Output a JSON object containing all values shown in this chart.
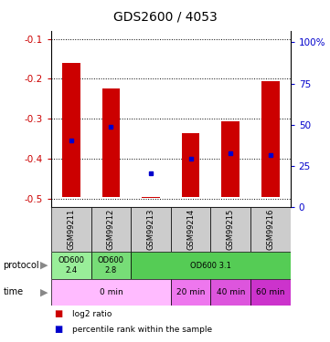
{
  "title": "GDS2600 / 4053",
  "samples": [
    "GSM99211",
    "GSM99212",
    "GSM99213",
    "GSM99214",
    "GSM99215",
    "GSM99216"
  ],
  "log2_top": [
    -0.16,
    -0.225,
    -0.496,
    -0.335,
    -0.305,
    -0.205
  ],
  "log2_bottom": [
    -0.496,
    -0.496,
    -0.498,
    -0.496,
    -0.496,
    -0.496
  ],
  "percentile_rank_left": [
    -0.355,
    -0.32,
    -0.435,
    -0.4,
    -0.385,
    -0.39
  ],
  "bar_color": "#cc0000",
  "dot_color": "#0000cc",
  "ylim_left": [
    -0.52,
    -0.08
  ],
  "ylim_right": [
    0,
    107
  ],
  "yticks_left": [
    -0.5,
    -0.4,
    -0.3,
    -0.2,
    -0.1
  ],
  "yticks_right": [
    0,
    25,
    50,
    75,
    100
  ],
  "ytick_labels_left": [
    "-0.5",
    "-0.4",
    "-0.3",
    "-0.2",
    "-0.1"
  ],
  "ytick_labels_right": [
    "0",
    "25",
    "50",
    "75",
    "100%"
  ],
  "left_yaxis_color": "#cc0000",
  "right_yaxis_color": "#0000cc",
  "protocol_cells": [
    {
      "label": "OD600\n2.4",
      "span": 1,
      "color": "#99ee99"
    },
    {
      "label": "OD600\n2.8",
      "span": 1,
      "color": "#77dd77"
    },
    {
      "label": "OD600 3.1",
      "span": 4,
      "color": "#55cc55"
    }
  ],
  "time_cells": [
    {
      "label": "0 min",
      "span": 3,
      "color": "#ffbbff"
    },
    {
      "label": "20 min",
      "span": 1,
      "color": "#ee77ee"
    },
    {
      "label": "40 min",
      "span": 1,
      "color": "#dd55dd"
    },
    {
      "label": "60 min",
      "span": 1,
      "color": "#cc33cc"
    }
  ],
  "legend_items": [
    {
      "color": "#cc0000",
      "label": "log2 ratio"
    },
    {
      "color": "#0000cc",
      "label": "percentile rank within the sample"
    }
  ],
  "sample_bg": "#cccccc",
  "n_samples": 6,
  "bar_width": 0.45
}
